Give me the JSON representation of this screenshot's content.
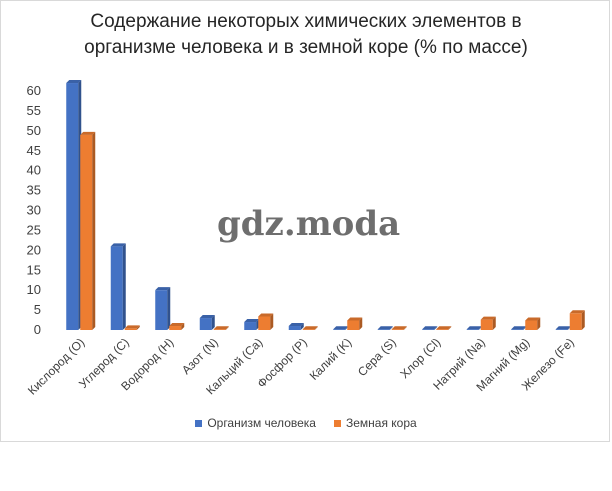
{
  "chart_data": {
    "type": "bar",
    "title": "Содержание некоторых химических элементов в\nорганизме человека и в земной коре (% по массе)",
    "xlabel": "",
    "ylabel": "",
    "ylim": [
      0,
      60
    ],
    "yticks": [
      0,
      5,
      10,
      15,
      20,
      25,
      30,
      35,
      40,
      45,
      50,
      55,
      60
    ],
    "grid": false,
    "legend": "bottom",
    "categories": [
      "Кислород (O)",
      "Углерод (C)",
      "Водород (H)",
      "Азот (N)",
      "Кальций (Ca)",
      "Фосфор (P)",
      "Калий (K)",
      "Сера (S)",
      "Хлор (Cl)",
      "Натрий (Na)",
      "Магний (Mg)",
      "Железо (Fe)"
    ],
    "series": [
      {
        "name": "Организм человека",
        "color": "#4472c4",
        "values": [
          62,
          21,
          10,
          3,
          2,
          1,
          0.2,
          0.1,
          0.1,
          0.1,
          0.1,
          0.1
        ]
      },
      {
        "name": "Земная кора",
        "color": "#ed7d31",
        "values": [
          49,
          0.4,
          1,
          0.1,
          3.4,
          0.1,
          2.4,
          0.1,
          0.2,
          2.6,
          2.4,
          4.2
        ]
      }
    ]
  },
  "watermark": "gdz.moda"
}
